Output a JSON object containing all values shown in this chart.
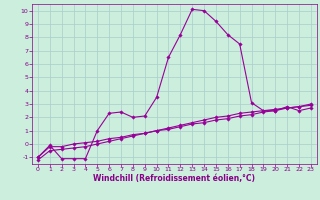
{
  "title": "",
  "xlabel": "Windchill (Refroidissement éolien,°C)",
  "ylabel": "",
  "bg_color": "#cceedd",
  "grid_color": "#aacccc",
  "line_color": "#990099",
  "xlim": [
    -0.5,
    23.5
  ],
  "ylim": [
    -1.5,
    10.5
  ],
  "xticks": [
    0,
    1,
    2,
    3,
    4,
    5,
    6,
    7,
    8,
    9,
    10,
    11,
    12,
    13,
    14,
    15,
    16,
    17,
    18,
    19,
    20,
    21,
    22,
    23
  ],
  "yticks": [
    -1,
    0,
    1,
    2,
    3,
    4,
    5,
    6,
    7,
    8,
    9,
    10
  ],
  "curve1_x": [
    0,
    1,
    2,
    3,
    4,
    5,
    6,
    7,
    8,
    9,
    10,
    11,
    12,
    13,
    14,
    15,
    16,
    17,
    18,
    19,
    20,
    21,
    22,
    23
  ],
  "curve1_y": [
    -1.0,
    -0.1,
    -1.1,
    -1.1,
    -1.1,
    1.0,
    2.3,
    2.4,
    2.0,
    2.1,
    3.5,
    6.5,
    8.2,
    10.1,
    10.0,
    9.2,
    8.2,
    7.5,
    3.1,
    2.5,
    2.5,
    2.8,
    2.5,
    2.7
  ],
  "curve2_x": [
    0,
    1,
    2,
    3,
    4,
    5,
    6,
    7,
    8,
    9,
    10,
    11,
    12,
    13,
    14,
    15,
    16,
    17,
    18,
    19,
    20,
    21,
    22,
    23
  ],
  "curve2_y": [
    -1.0,
    -0.2,
    -0.2,
    0.0,
    0.1,
    0.2,
    0.4,
    0.5,
    0.7,
    0.8,
    1.0,
    1.1,
    1.3,
    1.5,
    1.6,
    1.8,
    1.9,
    2.1,
    2.2,
    2.4,
    2.5,
    2.7,
    2.8,
    3.0
  ],
  "curve3_x": [
    0,
    1,
    2,
    3,
    4,
    5,
    6,
    7,
    8,
    9,
    10,
    11,
    12,
    13,
    14,
    15,
    16,
    17,
    18,
    19,
    20,
    21,
    22,
    23
  ],
  "curve3_y": [
    -1.2,
    -0.5,
    -0.4,
    -0.3,
    -0.2,
    -0.0,
    0.2,
    0.4,
    0.6,
    0.8,
    1.0,
    1.2,
    1.4,
    1.6,
    1.8,
    2.0,
    2.1,
    2.3,
    2.4,
    2.5,
    2.6,
    2.7,
    2.8,
    2.9
  ],
  "tick_color": "#880088",
  "label_color": "#880088",
  "tick_fontsize": 4.5,
  "xlabel_fontsize": 5.5
}
